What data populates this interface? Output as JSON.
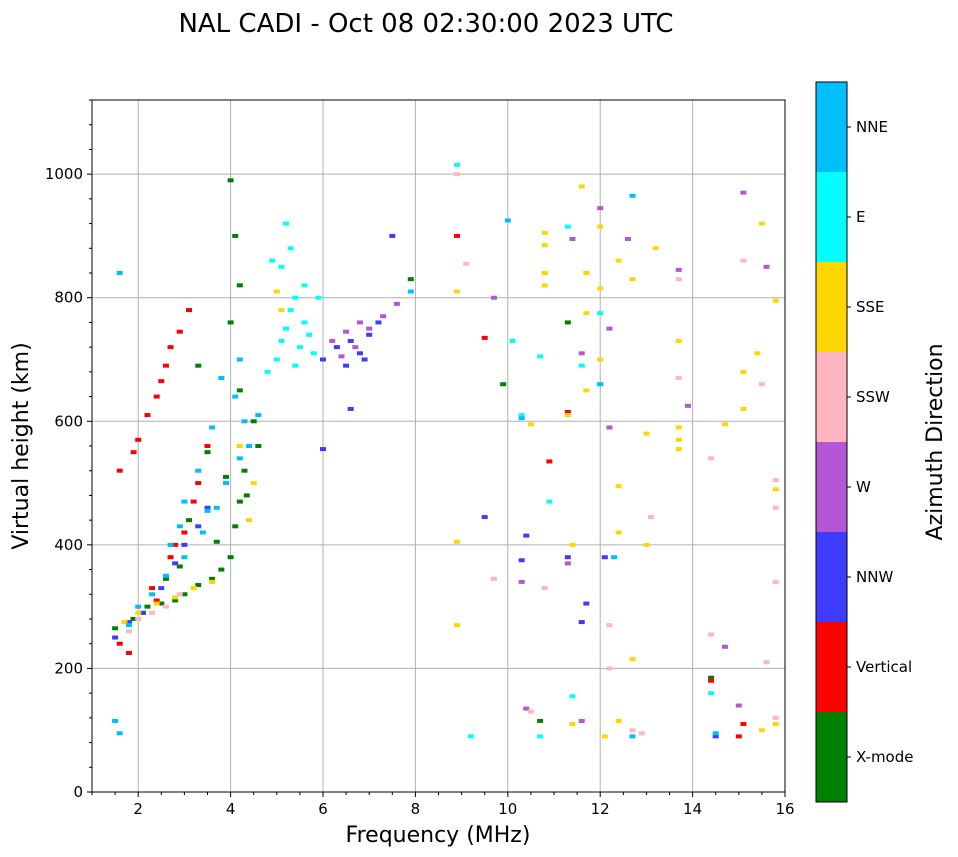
{
  "chart_data": {
    "type": "scatter",
    "title": "NAL CADI - Oct 08 02:30:00 2023 UTC",
    "xlabel": "Frequency (MHz)",
    "ylabel": "Virtual height (km)",
    "xlim": [
      1,
      16
    ],
    "ylim": [
      0,
      1120
    ],
    "xticks": [
      2,
      4,
      6,
      8,
      10,
      12,
      14,
      16
    ],
    "yticks": [
      0,
      200,
      400,
      600,
      800,
      1000
    ],
    "grid": true,
    "colorbar": {
      "title": "Azimuth Direction",
      "categories": [
        {
          "label": "X-mode",
          "color": "#008000"
        },
        {
          "label": "Vertical",
          "color": "#ff0000"
        },
        {
          "label": "NNW",
          "color": "#3c3cff"
        },
        {
          "label": "W",
          "color": "#b456d6"
        },
        {
          "label": "SSW",
          "color": "#ffb6c1"
        },
        {
          "label": "SSE",
          "color": "#ffd700"
        },
        {
          "label": "E",
          "color": "#00ffff"
        },
        {
          "label": "NNE",
          "color": "#00bfff"
        }
      ]
    },
    "series": [
      {
        "name": "X-mode",
        "points": [
          [
            1.5,
            265
          ],
          [
            1.9,
            280
          ],
          [
            2.2,
            300
          ],
          [
            2.5,
            305
          ],
          [
            2.8,
            310
          ],
          [
            3.0,
            320
          ],
          [
            3.3,
            335
          ],
          [
            3.6,
            345
          ],
          [
            3.8,
            360
          ],
          [
            4.0,
            380
          ],
          [
            4.1,
            430
          ],
          [
            4.2,
            470
          ],
          [
            4.3,
            520
          ],
          [
            4.5,
            600
          ],
          [
            3.9,
            510
          ],
          [
            3.5,
            550
          ],
          [
            4.2,
            650
          ],
          [
            4.0,
            760
          ],
          [
            4.2,
            820
          ],
          [
            4.1,
            900
          ],
          [
            4.0,
            990
          ],
          [
            11.3,
            760
          ],
          [
            9.9,
            660
          ],
          [
            10.7,
            115
          ],
          [
            14.4,
            185
          ],
          [
            7.9,
            830
          ],
          [
            3.3,
            690
          ],
          [
            3.1,
            440
          ],
          [
            2.6,
            345
          ],
          [
            2.9,
            365
          ],
          [
            4.6,
            560
          ],
          [
            3.7,
            405
          ],
          [
            4.35,
            480
          ]
        ]
      },
      {
        "name": "Vertical",
        "points": [
          [
            1.6,
            520
          ],
          [
            1.9,
            550
          ],
          [
            2.0,
            570
          ],
          [
            2.2,
            610
          ],
          [
            2.4,
            640
          ],
          [
            2.5,
            665
          ],
          [
            2.6,
            690
          ],
          [
            2.7,
            720
          ],
          [
            2.9,
            745
          ],
          [
            3.1,
            780
          ],
          [
            1.6,
            240
          ],
          [
            1.8,
            225
          ],
          [
            2.1,
            290
          ],
          [
            2.4,
            310
          ],
          [
            2.7,
            380
          ],
          [
            3.0,
            420
          ],
          [
            3.3,
            500
          ],
          [
            3.5,
            560
          ],
          [
            8.9,
            900
          ],
          [
            9.5,
            735
          ],
          [
            10.9,
            535
          ],
          [
            11.3,
            615
          ],
          [
            14.4,
            180
          ],
          [
            15.0,
            90
          ],
          [
            15.1,
            110
          ],
          [
            2.3,
            330
          ],
          [
            2.8,
            400
          ],
          [
            3.2,
            470
          ]
        ]
      },
      {
        "name": "NNW",
        "points": [
          [
            1.5,
            250
          ],
          [
            1.8,
            275
          ],
          [
            2.1,
            290
          ],
          [
            2.5,
            330
          ],
          [
            2.8,
            370
          ],
          [
            3.0,
            400
          ],
          [
            3.3,
            430
          ],
          [
            3.5,
            460
          ],
          [
            6.0,
            700
          ],
          [
            6.3,
            720
          ],
          [
            6.6,
            730
          ],
          [
            6.8,
            710
          ],
          [
            7.0,
            740
          ],
          [
            7.2,
            760
          ],
          [
            6.6,
            620
          ],
          [
            7.5,
            900
          ],
          [
            6.0,
            555
          ],
          [
            9.5,
            445
          ],
          [
            10.3,
            375
          ],
          [
            11.7,
            305
          ],
          [
            11.6,
            275
          ],
          [
            12.1,
            380
          ],
          [
            10.4,
            415
          ],
          [
            11.3,
            380
          ],
          [
            14.5,
            90
          ],
          [
            6.5,
            690
          ],
          [
            6.9,
            700
          ]
        ]
      },
      {
        "name": "W",
        "points": [
          [
            6.2,
            730
          ],
          [
            6.5,
            745
          ],
          [
            6.8,
            760
          ],
          [
            7.0,
            750
          ],
          [
            7.3,
            770
          ],
          [
            7.6,
            790
          ],
          [
            6.7,
            720
          ],
          [
            6.4,
            705
          ],
          [
            12.2,
            750
          ],
          [
            12.2,
            590
          ],
          [
            12.6,
            895
          ],
          [
            13.7,
            845
          ],
          [
            13.9,
            625
          ],
          [
            15.1,
            970
          ],
          [
            15.6,
            850
          ],
          [
            12.0,
            945
          ],
          [
            11.6,
            710
          ],
          [
            10.3,
            340
          ],
          [
            11.3,
            370
          ],
          [
            9.7,
            800
          ],
          [
            14.7,
            235
          ],
          [
            15.0,
            140
          ],
          [
            11.6,
            115
          ],
          [
            10.4,
            135
          ],
          [
            11.4,
            895
          ]
        ]
      },
      {
        "name": "SSW",
        "points": [
          [
            1.8,
            260
          ],
          [
            2.0,
            280
          ],
          [
            2.3,
            290
          ],
          [
            2.6,
            300
          ],
          [
            2.9,
            320
          ],
          [
            3.2,
            330
          ],
          [
            8.9,
            1000
          ],
          [
            9.1,
            855
          ],
          [
            12.2,
            270
          ],
          [
            12.2,
            200
          ],
          [
            12.7,
            100
          ],
          [
            13.1,
            445
          ],
          [
            13.7,
            670
          ],
          [
            13.7,
            830
          ],
          [
            14.4,
            540
          ],
          [
            14.4,
            255
          ],
          [
            15.1,
            860
          ],
          [
            15.5,
            660
          ],
          [
            15.8,
            505
          ],
          [
            15.8,
            460
          ],
          [
            15.8,
            340
          ],
          [
            15.8,
            120
          ],
          [
            15.6,
            210
          ],
          [
            12.9,
            95
          ],
          [
            10.5,
            130
          ],
          [
            9.7,
            345
          ],
          [
            10.8,
            330
          ]
        ]
      },
      {
        "name": "SSE",
        "points": [
          [
            1.7,
            275
          ],
          [
            2.0,
            290
          ],
          [
            2.4,
            305
          ],
          [
            2.8,
            315
          ],
          [
            3.2,
            330
          ],
          [
            3.6,
            340
          ],
          [
            4.4,
            440
          ],
          [
            4.5,
            500
          ],
          [
            4.2,
            560
          ],
          [
            5.0,
            810
          ],
          [
            5.1,
            780
          ],
          [
            8.9,
            810
          ],
          [
            8.9,
            405
          ],
          [
            8.9,
            270
          ],
          [
            10.5,
            595
          ],
          [
            10.8,
            905
          ],
          [
            10.8,
            885
          ],
          [
            10.8,
            840
          ],
          [
            10.8,
            820
          ],
          [
            11.3,
            610
          ],
          [
            11.4,
            400
          ],
          [
            11.4,
            110
          ],
          [
            11.6,
            980
          ],
          [
            11.7,
            840
          ],
          [
            11.7,
            775
          ],
          [
            11.7,
            650
          ],
          [
            12.0,
            915
          ],
          [
            12.0,
            815
          ],
          [
            12.0,
            700
          ],
          [
            12.1,
            90
          ],
          [
            12.4,
            860
          ],
          [
            12.4,
            495
          ],
          [
            12.4,
            420
          ],
          [
            12.4,
            115
          ],
          [
            12.7,
            830
          ],
          [
            12.7,
            215
          ],
          [
            13.0,
            580
          ],
          [
            13.0,
            400
          ],
          [
            13.2,
            880
          ],
          [
            13.7,
            730
          ],
          [
            13.7,
            590
          ],
          [
            13.7,
            570
          ],
          [
            13.7,
            555
          ],
          [
            14.7,
            595
          ],
          [
            15.1,
            620
          ],
          [
            15.1,
            680
          ],
          [
            15.4,
            710
          ],
          [
            15.5,
            920
          ],
          [
            15.8,
            795
          ],
          [
            15.8,
            490
          ],
          [
            15.8,
            110
          ],
          [
            15.5,
            100
          ]
        ]
      },
      {
        "name": "E",
        "points": [
          [
            5.0,
            700
          ],
          [
            5.1,
            730
          ],
          [
            5.2,
            750
          ],
          [
            5.3,
            780
          ],
          [
            5.4,
            800
          ],
          [
            5.6,
            820
          ],
          [
            5.1,
            850
          ],
          [
            5.3,
            880
          ],
          [
            4.9,
            860
          ],
          [
            5.6,
            760
          ],
          [
            5.5,
            720
          ],
          [
            4.8,
            680
          ],
          [
            5.7,
            740
          ],
          [
            5.9,
            800
          ],
          [
            5.2,
            920
          ],
          [
            8.9,
            1015
          ],
          [
            9.2,
            90
          ],
          [
            10.1,
            730
          ],
          [
            10.3,
            610
          ],
          [
            10.7,
            705
          ],
          [
            10.7,
            90
          ],
          [
            11.3,
            915
          ],
          [
            11.4,
            155
          ],
          [
            11.6,
            690
          ],
          [
            12.0,
            775
          ],
          [
            12.0,
            660
          ],
          [
            10.9,
            470
          ],
          [
            14.4,
            160
          ],
          [
            5.4,
            690
          ],
          [
            5.8,
            710
          ]
        ]
      },
      {
        "name": "NNE",
        "points": [
          [
            1.5,
            115
          ],
          [
            1.6,
            95
          ],
          [
            1.8,
            270
          ],
          [
            2.0,
            300
          ],
          [
            2.3,
            320
          ],
          [
            2.6,
            350
          ],
          [
            3.0,
            380
          ],
          [
            3.4,
            420
          ],
          [
            3.7,
            460
          ],
          [
            3.9,
            500
          ],
          [
            4.2,
            540
          ],
          [
            4.3,
            600
          ],
          [
            4.1,
            640
          ],
          [
            4.2,
            700
          ],
          [
            3.8,
            670
          ],
          [
            3.6,
            590
          ],
          [
            3.3,
            520
          ],
          [
            3.0,
            470
          ],
          [
            2.7,
            400
          ],
          [
            1.6,
            840
          ],
          [
            10.0,
            925
          ],
          [
            10.3,
            605
          ],
          [
            12.0,
            660
          ],
          [
            12.3,
            380
          ],
          [
            12.7,
            90
          ],
          [
            12.7,
            965
          ],
          [
            14.5,
            95
          ],
          [
            4.6,
            610
          ],
          [
            4.4,
            560
          ],
          [
            3.5,
            455
          ],
          [
            2.9,
            430
          ],
          [
            7.9,
            810
          ]
        ]
      }
    ]
  }
}
